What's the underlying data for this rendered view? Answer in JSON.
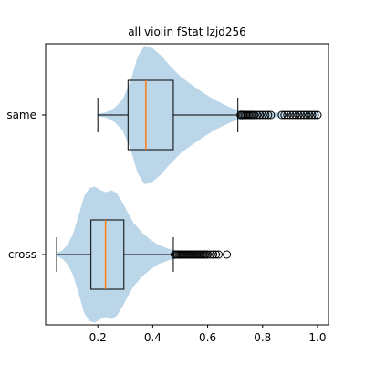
{
  "chart_data": {
    "type": "violin",
    "title": "all violin fStat lzjd256",
    "orientation": "horizontal",
    "xlabel": "",
    "ylabel": "",
    "xlim": [
      0.01,
      1.04
    ],
    "x_ticks": [
      "0.2",
      "0.4",
      "0.6",
      "0.8",
      "1.0"
    ],
    "categories": [
      "same",
      "cross"
    ],
    "colors": {
      "violin_fill": "#1f77b4",
      "violin_alpha": 0.3,
      "median_line": "#ff7f0e",
      "box_line": "#000000",
      "flier_edge": "#000000"
    },
    "series": [
      {
        "category": "same",
        "whisker_low": 0.2,
        "q1": 0.31,
        "median": 0.375,
        "q3": 0.475,
        "whisker_high": 0.71,
        "fliers": [
          0.72,
          0.725,
          0.73,
          0.735,
          0.74,
          0.745,
          0.75,
          0.755,
          0.76,
          0.765,
          0.77,
          0.78,
          0.79,
          0.8,
          0.81,
          0.82,
          0.83,
          0.87,
          0.88,
          0.89,
          0.9,
          0.91,
          0.92,
          0.93,
          0.94,
          0.95,
          0.96,
          0.97,
          0.98,
          0.99,
          1.0
        ],
        "density": [
          [
            0.2,
            0.015
          ],
          [
            0.23,
            0.04
          ],
          [
            0.26,
            0.1
          ],
          [
            0.29,
            0.22
          ],
          [
            0.32,
            0.5
          ],
          [
            0.345,
            0.84
          ],
          [
            0.37,
            1.0
          ],
          [
            0.4,
            0.96
          ],
          [
            0.43,
            0.86
          ],
          [
            0.46,
            0.72
          ],
          [
            0.5,
            0.56
          ],
          [
            0.54,
            0.44
          ],
          [
            0.58,
            0.33
          ],
          [
            0.62,
            0.23
          ],
          [
            0.66,
            0.15
          ],
          [
            0.7,
            0.08
          ],
          [
            0.75,
            0.05
          ],
          [
            0.8,
            0.04
          ],
          [
            0.85,
            0.035
          ],
          [
            0.9,
            0.03
          ],
          [
            0.95,
            0.03
          ],
          [
            0.98,
            0.05
          ],
          [
            1.0,
            0.04
          ]
        ]
      },
      {
        "category": "cross",
        "whisker_low": 0.05,
        "q1": 0.175,
        "median": 0.228,
        "q3": 0.295,
        "whisker_high": 0.475,
        "fliers": [
          0.48,
          0.485,
          0.49,
          0.495,
          0.5,
          0.505,
          0.51,
          0.515,
          0.52,
          0.525,
          0.53,
          0.535,
          0.54,
          0.545,
          0.55,
          0.555,
          0.56,
          0.565,
          0.57,
          0.575,
          0.58,
          0.585,
          0.59,
          0.595,
          0.6,
          0.61,
          0.62,
          0.63,
          0.64,
          0.67
        ],
        "density": [
          [
            0.05,
            0.02
          ],
          [
            0.07,
            0.06
          ],
          [
            0.09,
            0.14
          ],
          [
            0.11,
            0.3
          ],
          [
            0.13,
            0.56
          ],
          [
            0.15,
            0.84
          ],
          [
            0.17,
            0.96
          ],
          [
            0.19,
            0.98
          ],
          [
            0.21,
            0.93
          ],
          [
            0.23,
            0.9
          ],
          [
            0.25,
            0.93
          ],
          [
            0.27,
            0.88
          ],
          [
            0.29,
            0.75
          ],
          [
            0.31,
            0.6
          ],
          [
            0.33,
            0.46
          ],
          [
            0.36,
            0.32
          ],
          [
            0.39,
            0.22
          ],
          [
            0.42,
            0.14
          ],
          [
            0.46,
            0.08
          ],
          [
            0.5,
            0.05
          ],
          [
            0.55,
            0.03
          ],
          [
            0.6,
            0.02
          ],
          [
            0.65,
            0.01
          ],
          [
            0.68,
            0.003
          ]
        ]
      }
    ]
  }
}
